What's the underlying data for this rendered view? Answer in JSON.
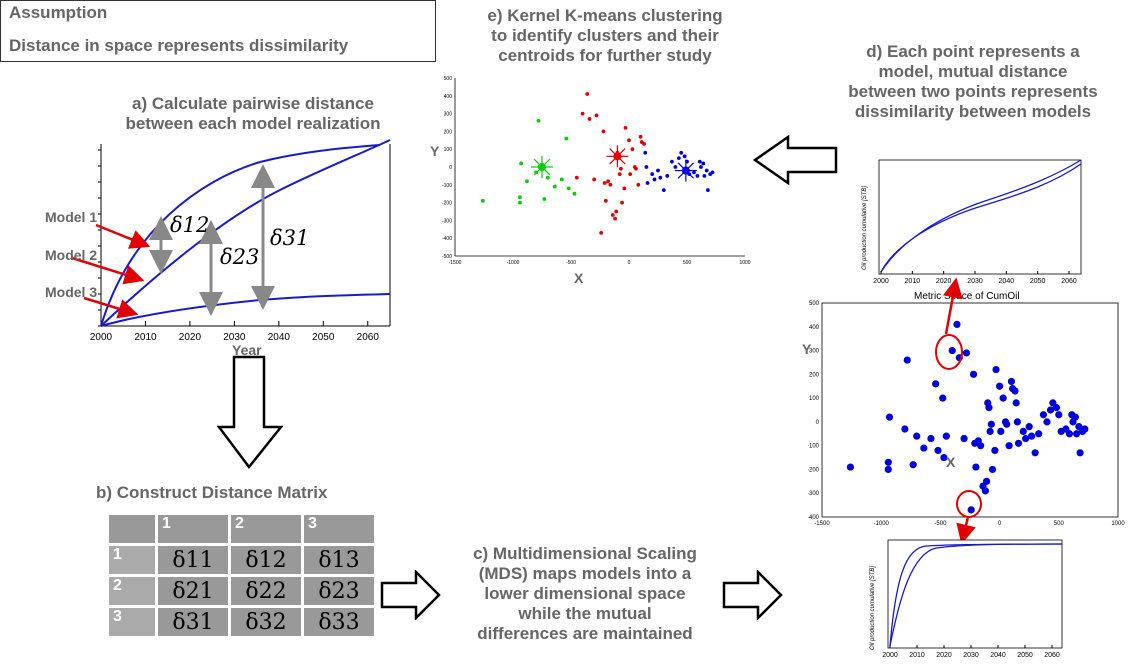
{
  "assumption": {
    "title": "Assumption",
    "text": "Distance in space represents dissimilarity"
  },
  "panel_a": {
    "title_line1": "a) Calculate pairwise distance",
    "title_line2": "between each model realization",
    "models": [
      "Model 1",
      "Model 2",
      "Model 3"
    ],
    "deltas": [
      "δ12",
      "δ23",
      "δ31"
    ],
    "x_ticks": [
      "2000",
      "2010",
      "2020",
      "2030",
      "2040",
      "2050",
      "2060"
    ],
    "x_label": "Year"
  },
  "panel_b": {
    "title": "b) Construct Distance Matrix",
    "headers": [
      "1",
      "2",
      "3"
    ],
    "rows": [
      {
        "label": "1",
        "cells": [
          "δ11",
          "δ12",
          "δ13"
        ]
      },
      {
        "label": "2",
        "cells": [
          "δ21",
          "δ22",
          "δ23"
        ]
      },
      {
        "label": "3",
        "cells": [
          "δ31",
          "δ32",
          "δ33"
        ]
      }
    ]
  },
  "panel_c": {
    "lines": [
      "c) Multidimensional Scaling",
      "(MDS) maps models into a",
      "lower dimensional space",
      "while the mutual",
      "differences are maintained"
    ]
  },
  "panel_d": {
    "lines": [
      "d) Each point represents a",
      "model, mutual distance",
      "between two points represents",
      "dissimilarity between models"
    ],
    "mini_ylabel": "Oil production cumulative [STB]",
    "mini_xticks": [
      "2000",
      "2010",
      "2020",
      "2030",
      "2040",
      "2050",
      "2060"
    ],
    "metric_title": "Metric Space of CumOil",
    "scatter_xlabel": "X",
    "scatter_ylabel": "Y",
    "scatter_xticks": [
      "-1500",
      "-1000",
      "-500",
      "0",
      "500",
      "1000"
    ],
    "scatter_yticks": [
      "500",
      "400",
      "300",
      "200",
      "100",
      "0",
      "-100",
      "-200",
      "-300",
      "-400"
    ]
  },
  "panel_e": {
    "lines": [
      "e) Kernel K-means clustering",
      "to identify clusters and their",
      "centroids for further study"
    ],
    "xlabel": "X",
    "ylabel": "Y"
  },
  "colors": {
    "curve": "#1a1acc",
    "arrow_red": "#e00000",
    "gray_text": "#666666",
    "green": "#00cc00",
    "red": "#e00000",
    "blue": "#0000dd"
  },
  "chart_data": [
    {
      "type": "scatter",
      "title": "Metric Space of CumOil",
      "xlabel": "X",
      "ylabel": "Y",
      "xlim": [
        -1500,
        1000
      ],
      "ylim": [
        -400,
        500
      ],
      "series": [
        {
          "values": [
            [
              -1260,
              -190
            ],
            [
              -940,
              -200
            ],
            [
              -940,
              -170
            ],
            [
              -930,
              20
            ],
            [
              -780,
              260
            ],
            [
              -800,
              -30
            ],
            [
              -730,
              -180
            ],
            [
              -700,
              -60
            ],
            [
              -640,
              -110
            ],
            [
              -580,
              -70
            ],
            [
              -540,
              160
            ],
            [
              -520,
              -120
            ],
            [
              -480,
              100
            ],
            [
              -470,
              -150
            ],
            [
              -450,
              -60
            ],
            [
              -400,
              300
            ],
            [
              -360,
              410
            ],
            [
              -340,
              270
            ],
            [
              -300,
              -70
            ],
            [
              -280,
              290
            ],
            [
              -240,
              -370
            ],
            [
              -220,
              200
            ],
            [
              -210,
              -90
            ],
            [
              -200,
              -190
            ],
            [
              -180,
              -80
            ],
            [
              -160,
              -100
            ],
            [
              -140,
              -270
            ],
            [
              -120,
              -290
            ],
            [
              -110,
              -250
            ],
            [
              -100,
              80
            ],
            [
              -90,
              60
            ],
            [
              -80,
              -40
            ],
            [
              -70,
              -10
            ],
            [
              -60,
              -200
            ],
            [
              -40,
              -120
            ],
            [
              -30,
              220
            ],
            [
              0,
              150
            ],
            [
              10,
              -40
            ],
            [
              30,
              100
            ],
            [
              50,
              0
            ],
            [
              60,
              -10
            ],
            [
              80,
              -100
            ],
            [
              100,
              170
            ],
            [
              110,
              140
            ],
            [
              130,
              130
            ],
            [
              140,
              80
            ],
            [
              150,
              0
            ],
            [
              160,
              -90
            ],
            [
              200,
              -40
            ],
            [
              220,
              -70
            ],
            [
              250,
              -20
            ],
            [
              270,
              -60
            ],
            [
              300,
              -130
            ],
            [
              330,
              -50
            ],
            [
              370,
              30
            ],
            [
              400,
              0
            ],
            [
              430,
              50
            ],
            [
              450,
              80
            ],
            [
              480,
              60
            ],
            [
              500,
              30
            ],
            [
              520,
              -40
            ],
            [
              560,
              -30
            ],
            [
              590,
              -50
            ],
            [
              610,
              30
            ],
            [
              620,
              0
            ],
            [
              640,
              20
            ],
            [
              650,
              -50
            ],
            [
              670,
              -20
            ],
            [
              680,
              -130
            ],
            [
              700,
              -40
            ],
            [
              720,
              -30
            ]
          ]
        }
      ]
    },
    {
      "type": "scatter",
      "xlabel": "X",
      "ylabel": "Y",
      "xlim": [
        -1500,
        1000
      ],
      "ylim": [
        -500,
        500
      ],
      "series": [
        {
          "color": "green",
          "values": [
            [
              -1260,
              -190
            ],
            [
              -940,
              -200
            ],
            [
              -940,
              -170
            ],
            [
              -930,
              20
            ],
            [
              -880,
              -80
            ],
            [
              -780,
              260
            ],
            [
              -800,
              -30
            ],
            [
              -730,
              -180
            ],
            [
              -700,
              -60
            ],
            [
              -640,
              -110
            ],
            [
              -580,
              -70
            ],
            [
              -540,
              160
            ],
            [
              -520,
              -120
            ],
            [
              -470,
              -150
            ]
          ]
        },
        {
          "color": "red",
          "values": [
            [
              -400,
              300
            ],
            [
              -360,
              410
            ],
            [
              -340,
              270
            ],
            [
              -300,
              -70
            ],
            [
              -280,
              290
            ],
            [
              -240,
              -370
            ],
            [
              -220,
              200
            ],
            [
              -210,
              -90
            ],
            [
              -200,
              -190
            ],
            [
              -180,
              -80
            ],
            [
              -160,
              -100
            ],
            [
              -140,
              -270
            ],
            [
              -120,
              -290
            ],
            [
              -110,
              -250
            ],
            [
              -100,
              80
            ],
            [
              -90,
              60
            ],
            [
              -80,
              -40
            ],
            [
              -70,
              -10
            ],
            [
              -60,
              -200
            ],
            [
              -40,
              -120
            ],
            [
              -30,
              220
            ],
            [
              0,
              150
            ],
            [
              10,
              -40
            ],
            [
              30,
              100
            ],
            [
              50,
              0
            ],
            [
              60,
              -10
            ],
            [
              80,
              -100
            ],
            [
              100,
              170
            ],
            [
              110,
              140
            ],
            [
              130,
              130
            ],
            [
              -450,
              -60
            ]
          ]
        },
        {
          "color": "blue",
          "values": [
            [
              140,
              80
            ],
            [
              150,
              0
            ],
            [
              160,
              -90
            ],
            [
              200,
              -40
            ],
            [
              220,
              -70
            ],
            [
              250,
              -20
            ],
            [
              270,
              -60
            ],
            [
              300,
              -130
            ],
            [
              330,
              -50
            ],
            [
              370,
              30
            ],
            [
              400,
              0
            ],
            [
              430,
              50
            ],
            [
              450,
              80
            ],
            [
              480,
              60
            ],
            [
              500,
              30
            ],
            [
              520,
              -40
            ],
            [
              560,
              -30
            ],
            [
              590,
              -50
            ],
            [
              610,
              30
            ],
            [
              620,
              0
            ],
            [
              640,
              20
            ],
            [
              650,
              -50
            ],
            [
              670,
              -20
            ],
            [
              680,
              -130
            ],
            [
              700,
              -40
            ],
            [
              720,
              -30
            ]
          ]
        }
      ],
      "centroids": [
        [
          -750,
          0
        ],
        [
          -100,
          60
        ],
        [
          490,
          -20
        ]
      ]
    }
  ]
}
